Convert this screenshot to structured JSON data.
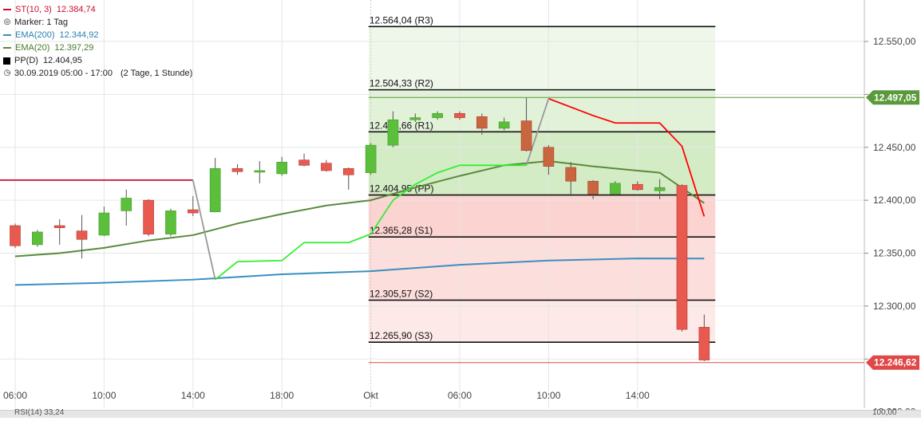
{
  "legend": {
    "st": {
      "label": "ST(10, 3)",
      "value": "12.384,74",
      "color": "#c8102e"
    },
    "marker": {
      "label": "Marker: 1 Tag",
      "icon": "target-icon"
    },
    "ema200": {
      "label": "EMA(200)",
      "value": "12.344,92",
      "color": "#3a8fc0"
    },
    "ema20": {
      "label": "EMA(20)",
      "value": "12.397,29",
      "color": "#5a8a3a"
    },
    "pp": {
      "label": "PP(D)",
      "value": "12.404,95",
      "color": "#000000"
    },
    "time": {
      "label": "30.09.2019 05:00 - 17:00",
      "extra": "(2 Tage, 1 Stunde)",
      "icon": "clock-icon"
    }
  },
  "bottom_panel": {
    "label": "RSI(14) 33,24",
    "right_label": "100,00"
  },
  "chart_data": {
    "type": "candlestick",
    "ylim": [
      12200,
      12580
    ],
    "y_ticks": [
      12200,
      12250,
      12300,
      12350,
      12400,
      12450,
      12500,
      12550
    ],
    "y_tick_labels": [
      "12.200,00",
      "12.250,00",
      "12.300,00",
      "12.350,00",
      "12.400,00",
      "12.450,00",
      "12.500,00",
      "12.550,00"
    ],
    "x_ticks": [
      {
        "i": 0,
        "label": "06:00"
      },
      {
        "i": 4,
        "label": "10:00"
      },
      {
        "i": 8,
        "label": "14:00"
      },
      {
        "i": 12,
        "label": "18:00"
      },
      {
        "i": 16,
        "label": "Okt"
      },
      {
        "i": 20,
        "label": "06:00"
      },
      {
        "i": 24,
        "label": "10:00"
      },
      {
        "i": 28,
        "label": "14:00"
      }
    ],
    "candles": [
      {
        "o": 12376,
        "h": 12378,
        "c": 12357,
        "l": 12355
      },
      {
        "o": 12358,
        "h": 12372,
        "c": 12370,
        "l": 12356
      },
      {
        "o": 12376,
        "h": 12382,
        "c": 12374,
        "l": 12358
      },
      {
        "o": 12371,
        "h": 12386,
        "c": 12363,
        "l": 12345
      },
      {
        "o": 12367,
        "h": 12394,
        "c": 12388,
        "l": 12366
      },
      {
        "o": 12390,
        "h": 12410,
        "c": 12402,
        "l": 12376
      },
      {
        "o": 12400,
        "h": 12401,
        "c": 12368,
        "l": 12366
      },
      {
        "o": 12368,
        "h": 12392,
        "c": 12390,
        "l": 12366
      },
      {
        "o": 12391,
        "h": 12404,
        "c": 12388,
        "l": 12385
      },
      {
        "o": 12389,
        "h": 12440,
        "c": 12430,
        "l": 12389
      },
      {
        "o": 12430,
        "h": 12434,
        "c": 12427,
        "l": 12424
      },
      {
        "o": 12428,
        "h": 12437,
        "c": 12428,
        "l": 12416
      },
      {
        "o": 12425,
        "h": 12441,
        "c": 12436,
        "l": 12423
      },
      {
        "o": 12438,
        "h": 12444,
        "c": 12433,
        "l": 12432
      },
      {
        "o": 12435,
        "h": 12438,
        "c": 12428,
        "l": 12427
      },
      {
        "o": 12430,
        "h": 12431,
        "c": 12424,
        "l": 12410
      },
      {
        "o": 12426,
        "h": 12454,
        "c": 12452,
        "l": 12424
      },
      {
        "o": 12452,
        "h": 12484,
        "c": 12476,
        "l": 12450
      },
      {
        "o": 12476,
        "h": 12482,
        "c": 12478,
        "l": 12474
      },
      {
        "o": 12478,
        "h": 12484,
        "c": 12482,
        "l": 12476
      },
      {
        "o": 12482,
        "h": 12484,
        "c": 12478,
        "l": 12476
      },
      {
        "o": 12479,
        "h": 12482,
        "c": 12468,
        "l": 12462
      },
      {
        "o": 12468,
        "h": 12478,
        "c": 12474,
        "l": 12466
      },
      {
        "o": 12475,
        "h": 12497,
        "c": 12447,
        "l": 12446
      },
      {
        "o": 12450,
        "h": 12452,
        "c": 12432,
        "l": 12424
      },
      {
        "o": 12431,
        "h": 12436,
        "c": 12418,
        "l": 12404
      },
      {
        "o": 12418,
        "h": 12419,
        "c": 12406,
        "l": 12401
      },
      {
        "o": 12406,
        "h": 12418,
        "c": 12416,
        "l": 12404
      },
      {
        "o": 12415,
        "h": 12418,
        "c": 12410,
        "l": 12409
      },
      {
        "o": 12409,
        "h": 12420,
        "c": 12412,
        "l": 12401
      },
      {
        "o": 12414,
        "h": 12415,
        "c": 12278,
        "l": 12276
      },
      {
        "o": 12280,
        "h": 12292,
        "c": 12249,
        "l": 12248
      }
    ],
    "series": [
      {
        "name": "EMA(200)",
        "color": "#3a8fc0",
        "x": [
          0,
          4,
          8,
          12,
          16,
          20,
          24,
          28,
          31
        ],
        "y": [
          12320,
          12322,
          12325,
          12330,
          12333,
          12339,
          12343,
          12345,
          12344.92
        ]
      },
      {
        "name": "EMA(20)",
        "color": "#5a8a3a",
        "x": [
          0,
          2,
          4,
          6,
          8,
          10,
          12,
          14,
          16,
          18,
          20,
          22,
          24,
          26,
          28,
          29,
          31
        ],
        "y": [
          12347,
          12350,
          12355,
          12362,
          12367,
          12378,
          12387,
          12395,
          12400,
          12412,
          12423,
          12433,
          12437,
          12432,
          12428,
          12426,
          12397.29
        ]
      },
      {
        "name": "ST(10, 3)",
        "color": "#c8102e",
        "x": [
          -2,
          8
        ],
        "y": [
          12419,
          12419
        ]
      },
      {
        "name": "ST(10, 3)",
        "color": "#ff0000",
        "x": [
          24,
          26,
          27,
          29,
          30,
          31
        ],
        "y": [
          12496,
          12480,
          12473,
          12473,
          12451,
          12384.74
        ]
      },
      {
        "name": "ST(10, 3)",
        "color": "#33ee33",
        "x": [
          9,
          10,
          12,
          13,
          15,
          16,
          17,
          18,
          19,
          20,
          21,
          23
        ],
        "y": [
          12325,
          12342,
          12343,
          12360,
          12360,
          12368,
          12400,
          12415,
          12426,
          12433,
          12433,
          12433
        ]
      },
      {
        "name": "ST switch",
        "color": "#999999",
        "x": [
          8,
          9
        ],
        "y": [
          12419,
          12325
        ]
      },
      {
        "name": "ST switch",
        "color": "#999999",
        "x": [
          23,
          24
        ],
        "y": [
          12433,
          12496
        ]
      }
    ],
    "pivots": {
      "x_start": 15.9,
      "x_end": 31.5,
      "levels": [
        {
          "name": "R3",
          "value": 12564.04,
          "label": "12.564,04 (R3)"
        },
        {
          "name": "R2",
          "value": 12504.33,
          "label": "12.504,33 (R2)"
        },
        {
          "name": "R1",
          "value": 12464.66,
          "label": "12.464,66 (R1)"
        },
        {
          "name": "PP",
          "value": 12404.95,
          "label": "12.404,95 (PP)"
        },
        {
          "name": "S1",
          "value": 12365.28,
          "label": "12.365,28 (S1)"
        },
        {
          "name": "S2",
          "value": 12305.57,
          "label": "12.305,57 (S2)"
        },
        {
          "name": "S3",
          "value": 12265.9,
          "label": "12.265,90 (S3)"
        }
      ]
    },
    "price_markers": [
      {
        "value": 12497.05,
        "label": "12.497,05",
        "color": "#5a9a3a"
      },
      {
        "value": 12246.62,
        "label": "12.246,62",
        "color": "#e04848"
      }
    ],
    "colors": {
      "up": "#5cbf3c",
      "down": "#e8594f",
      "down_dark": "#c8673f",
      "resistance_fill": "#e8f5e0",
      "support_fill": "#fbd6d3"
    }
  }
}
